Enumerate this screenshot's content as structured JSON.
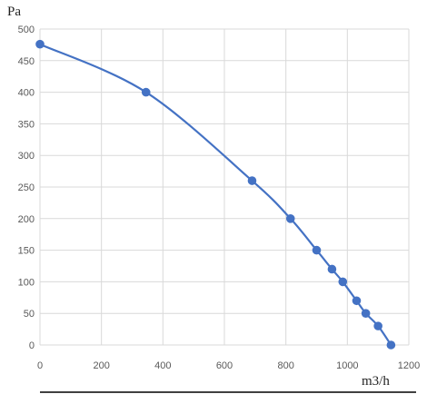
{
  "chart_data": {
    "type": "line",
    "title": "",
    "xlabel": "m3/h",
    "ylabel": "Pa",
    "xlim": [
      0,
      1200
    ],
    "ylim": [
      0,
      500
    ],
    "x_ticks": [
      0,
      200,
      400,
      600,
      800,
      1000,
      1200
    ],
    "y_ticks": [
      0,
      50,
      100,
      150,
      200,
      250,
      300,
      350,
      400,
      450,
      500
    ],
    "grid": true,
    "legend": "none",
    "series": [
      {
        "color": "#4472c4",
        "smooth": true,
        "markers": true,
        "points": [
          {
            "x": 0,
            "y": 476
          },
          {
            "x": 345,
            "y": 400
          },
          {
            "x": 690,
            "y": 260
          },
          {
            "x": 815,
            "y": 200
          },
          {
            "x": 900,
            "y": 150
          },
          {
            "x": 950,
            "y": 120
          },
          {
            "x": 985,
            "y": 100
          },
          {
            "x": 1030,
            "y": 70
          },
          {
            "x": 1060,
            "y": 50
          },
          {
            "x": 1100,
            "y": 30
          },
          {
            "x": 1142,
            "y": 0
          }
        ]
      }
    ]
  }
}
